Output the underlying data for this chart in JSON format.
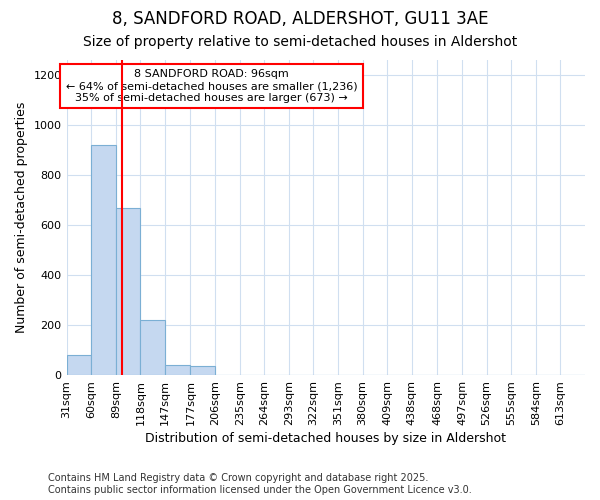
{
  "title_line1": "8, SANDFORD ROAD, ALDERSHOT, GU11 3AE",
  "title_line2": "Size of property relative to semi-detached houses in Aldershot",
  "xlabel": "Distribution of semi-detached houses by size in Aldershot",
  "ylabel": "Number of semi-detached properties",
  "bin_labels": [
    "31sqm",
    "60sqm",
    "89sqm",
    "118sqm",
    "147sqm",
    "177sqm",
    "206sqm",
    "235sqm",
    "264sqm",
    "293sqm",
    "322sqm",
    "351sqm",
    "380sqm",
    "409sqm",
    "438sqm",
    "468sqm",
    "497sqm",
    "526sqm",
    "555sqm",
    "584sqm",
    "613sqm"
  ],
  "bin_edges": [
    31,
    60,
    89,
    118,
    147,
    177,
    206,
    235,
    264,
    293,
    322,
    351,
    380,
    409,
    438,
    468,
    497,
    526,
    555,
    584,
    613,
    642
  ],
  "bar_heights": [
    80,
    920,
    670,
    220,
    40,
    35,
    0,
    0,
    0,
    0,
    0,
    0,
    0,
    0,
    0,
    0,
    0,
    0,
    0,
    0,
    0
  ],
  "bar_color": "#c5d8f0",
  "bar_edge_color": "#7bafd4",
  "red_line_x": 96,
  "annotation_title": "8 SANDFORD ROAD: 96sqm",
  "annotation_line1": "← 64% of semi-detached houses are smaller (1,236)",
  "annotation_line2": "35% of semi-detached houses are larger (673) →",
  "ylim": [
    0,
    1260
  ],
  "yticks": [
    0,
    200,
    400,
    600,
    800,
    1000,
    1200
  ],
  "footer_line1": "Contains HM Land Registry data © Crown copyright and database right 2025.",
  "footer_line2": "Contains public sector information licensed under the Open Government Licence v3.0.",
  "bg_color": "#ffffff",
  "plot_bg_color": "#ffffff",
  "grid_color": "#d0dff0",
  "title_fontsize": 12,
  "subtitle_fontsize": 10,
  "axis_label_fontsize": 9,
  "tick_fontsize": 8,
  "annotation_fontsize": 8,
  "footer_fontsize": 7
}
